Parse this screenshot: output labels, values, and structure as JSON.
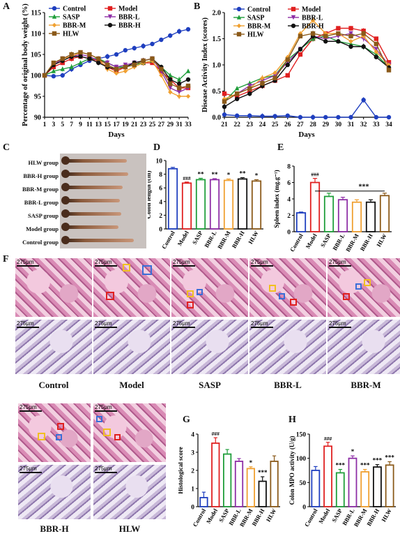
{
  "panels": {
    "A": "A",
    "B": "B",
    "C": "C",
    "D": "D",
    "E": "E",
    "F": "F",
    "G": "G",
    "H": "H"
  },
  "colors": {
    "Control": "#1f3fbf",
    "Model": "#e02020",
    "SASP": "#1f9e3a",
    "BBR-L": "#8e2ea6",
    "BBR-M": "#f0a030",
    "BBR-H": "#111111",
    "HLW": "#8b5a1a"
  },
  "legend_order": [
    "Control",
    "Model",
    "SASP",
    "BBR-L",
    "BBR-M",
    "BBR-H",
    "HLW"
  ],
  "chart_data": [
    {
      "id": "A",
      "type": "line",
      "ylabel": "Percentage of original body weight (%)",
      "xlabel": "Days",
      "x": [
        1,
        3,
        5,
        7,
        9,
        11,
        13,
        15,
        17,
        19,
        21,
        23,
        25,
        27,
        29,
        31,
        33
      ],
      "xtick_labels": [
        "1",
        "3",
        "5",
        "7",
        "9",
        "11",
        "13",
        "15",
        "17",
        "19",
        "21",
        "23",
        "25",
        "27",
        "29",
        "31",
        "33"
      ],
      "ylim": [
        90,
        115
      ],
      "yticks": [
        90,
        95,
        100,
        105,
        110,
        115
      ],
      "series": [
        {
          "name": "Control",
          "values": [
            100,
            99.8,
            100,
            101.5,
            102.5,
            103.5,
            104,
            104.5,
            105,
            106,
            106.5,
            107,
            107.5,
            108.5,
            109.5,
            110.5,
            111
          ]
        },
        {
          "name": "Model",
          "values": [
            100,
            102,
            103,
            104,
            104.5,
            104,
            103.5,
            102,
            101,
            102,
            102.5,
            103,
            103,
            101,
            99,
            97,
            97
          ]
        },
        {
          "name": "SASP",
          "values": [
            100,
            101,
            101.5,
            102,
            103,
            104,
            104,
            103,
            102,
            102,
            102.5,
            103,
            103.5,
            102,
            100,
            99,
            101
          ]
        },
        {
          "name": "BBR-L",
          "values": [
            100,
            102.5,
            104,
            104.5,
            105,
            104.5,
            103.5,
            103,
            102,
            102.5,
            103,
            103.5,
            104,
            101,
            97,
            96,
            97
          ]
        },
        {
          "name": "BBR-M",
          "values": [
            100,
            103,
            104,
            104.5,
            105.5,
            105,
            104,
            101.5,
            100.5,
            101,
            102,
            103,
            103.5,
            100,
            96,
            95,
            95
          ]
        },
        {
          "name": "BBR-H",
          "values": [
            100,
            102.5,
            103.5,
            104.5,
            104.5,
            104,
            103,
            102,
            101.5,
            102,
            103,
            103.5,
            104,
            102,
            99,
            98,
            99
          ]
        },
        {
          "name": "HLW",
          "values": [
            100,
            103,
            104,
            105,
            105.5,
            105,
            104,
            102.5,
            101.5,
            102,
            102.5,
            103.5,
            104,
            101.5,
            98,
            97,
            97.5
          ]
        }
      ]
    },
    {
      "id": "B",
      "type": "line",
      "ylabel": "Disease Activity Index (scores)",
      "xlabel": "Days",
      "x": [
        21,
        22,
        23,
        24,
        25,
        26,
        27,
        28,
        29,
        30,
        31,
        32,
        33,
        34
      ],
      "xtick_labels": [
        "21",
        "22",
        "23",
        "24",
        "25",
        "26",
        "27",
        "28",
        "29",
        "30",
        "31",
        "32",
        "33",
        "34"
      ],
      "ylim": [
        0,
        2.0
      ],
      "yticks": [
        0.0,
        0.5,
        1.0,
        1.5,
        2.0
      ],
      "ytick_labels": [
        "0.0",
        "0.5",
        "1.0",
        "1.5",
        "2.0"
      ],
      "series": [
        {
          "name": "Control",
          "values": [
            0.05,
            0.03,
            0.03,
            0.02,
            0.02,
            0.03,
            0,
            0,
            0,
            0,
            0,
            0.33,
            0,
            0
          ]
        },
        {
          "name": "Model",
          "values": [
            0.45,
            0.4,
            0.5,
            0.6,
            0.7,
            0.8,
            1.2,
            1.5,
            1.6,
            1.7,
            1.7,
            1.65,
            1.5,
            1.05
          ]
        },
        {
          "name": "SASP",
          "values": [
            0.3,
            0.55,
            0.65,
            0.75,
            0.8,
            1.1,
            1.3,
            1.5,
            1.55,
            1.45,
            1.4,
            1.35,
            1.2,
            0.95
          ]
        },
        {
          "name": "BBR-L",
          "values": [
            0.3,
            0.45,
            0.6,
            0.7,
            0.8,
            1.05,
            1.3,
            1.55,
            1.5,
            1.55,
            1.6,
            1.5,
            1.3,
            1.0
          ]
        },
        {
          "name": "BBR-M",
          "values": [
            0.35,
            0.45,
            0.55,
            0.75,
            0.85,
            1.15,
            1.6,
            1.85,
            1.6,
            1.6,
            1.45,
            1.55,
            1.25,
            1.0
          ]
        },
        {
          "name": "BBR-H",
          "values": [
            0.2,
            0.35,
            0.45,
            0.6,
            0.7,
            1.0,
            1.3,
            1.55,
            1.45,
            1.45,
            1.35,
            1.35,
            1.15,
            0.95
          ]
        },
        {
          "name": "HLW",
          "values": [
            0.3,
            0.45,
            0.55,
            0.65,
            0.75,
            1.1,
            1.55,
            1.6,
            1.55,
            1.6,
            1.55,
            1.6,
            1.4,
            0.9
          ]
        }
      ]
    },
    {
      "id": "D",
      "type": "bar",
      "ylabel": "Colon length (cm)",
      "categories": [
        "Control",
        "Model",
        "SASP",
        "BBR-L",
        "BBR-M",
        "BBR-H",
        "HLW"
      ],
      "values": [
        8.8,
        6.7,
        7.2,
        7.2,
        7.1,
        7.3,
        7.0
      ],
      "errors": [
        0.2,
        0.15,
        0.2,
        0.15,
        0.2,
        0.2,
        0.2
      ],
      "sig": [
        "",
        "###",
        "**",
        "**",
        "*",
        "**",
        "*"
      ],
      "ylim": [
        0,
        10
      ],
      "yticks": [
        0,
        2,
        4,
        6,
        8,
        10
      ]
    },
    {
      "id": "E",
      "type": "bar",
      "ylabel": "Spleen index (mg.g⁻¹)",
      "categories": [
        "Control",
        "Model",
        "SASP",
        "BBR-L",
        "BBR-M",
        "BBR-H",
        "HLW"
      ],
      "values": [
        2.3,
        6.0,
        4.3,
        3.9,
        3.6,
        3.6,
        4.4
      ],
      "errors": [
        0.1,
        0.5,
        0.4,
        0.3,
        0.3,
        0.3,
        0.3
      ],
      "sig": [
        "",
        "###",
        "",
        "",
        "",
        "",
        ""
      ],
      "bracket_label": "***",
      "ylim": [
        0,
        8
      ],
      "yticks": [
        0,
        2,
        4,
        6,
        8
      ]
    },
    {
      "id": "G",
      "type": "bar",
      "ylabel": "Histological score",
      "categories": [
        "Control",
        "Model",
        "SASP",
        "BBR-L",
        "BBR-M",
        "BBR-H",
        "HLW"
      ],
      "values": [
        0.5,
        3.5,
        2.9,
        2.5,
        2.1,
        1.4,
        2.5
      ],
      "errors": [
        0.3,
        0.3,
        0.25,
        0.15,
        0.1,
        0.25,
        0.3
      ],
      "sig": [
        "",
        "###",
        "",
        "",
        "*",
        "***",
        ""
      ],
      "ylim": [
        0,
        4
      ],
      "yticks": [
        0,
        1,
        2,
        3,
        4
      ]
    },
    {
      "id": "H",
      "type": "bar",
      "ylabel": "Colon MPO activity (U/g)",
      "categories": [
        "Control",
        "Model",
        "SASP",
        "BBR-L",
        "BBR-M",
        "BBR-H",
        "HLW"
      ],
      "values": [
        75,
        125,
        70,
        100,
        72,
        82,
        86
      ],
      "errors": [
        8,
        8,
        7,
        5,
        5,
        5,
        7
      ],
      "sig": [
        "",
        "###",
        "***",
        "*",
        "***",
        "***",
        "***"
      ],
      "ylim": [
        0,
        150
      ],
      "yticks": [
        0,
        50,
        100,
        150
      ]
    }
  ],
  "panel_c": {
    "groups": [
      "HLW group",
      "BBR-H group",
      "BBR-M group",
      "BBR-L group",
      "SASP group",
      "Model group",
      "Control group"
    ]
  },
  "histology": {
    "scale": "275μm",
    "top_row": [
      "Control",
      "Model",
      "SASP",
      "BBR-L",
      "BBR-M"
    ],
    "bottom_row": [
      "BBR-H",
      "HLW"
    ]
  }
}
